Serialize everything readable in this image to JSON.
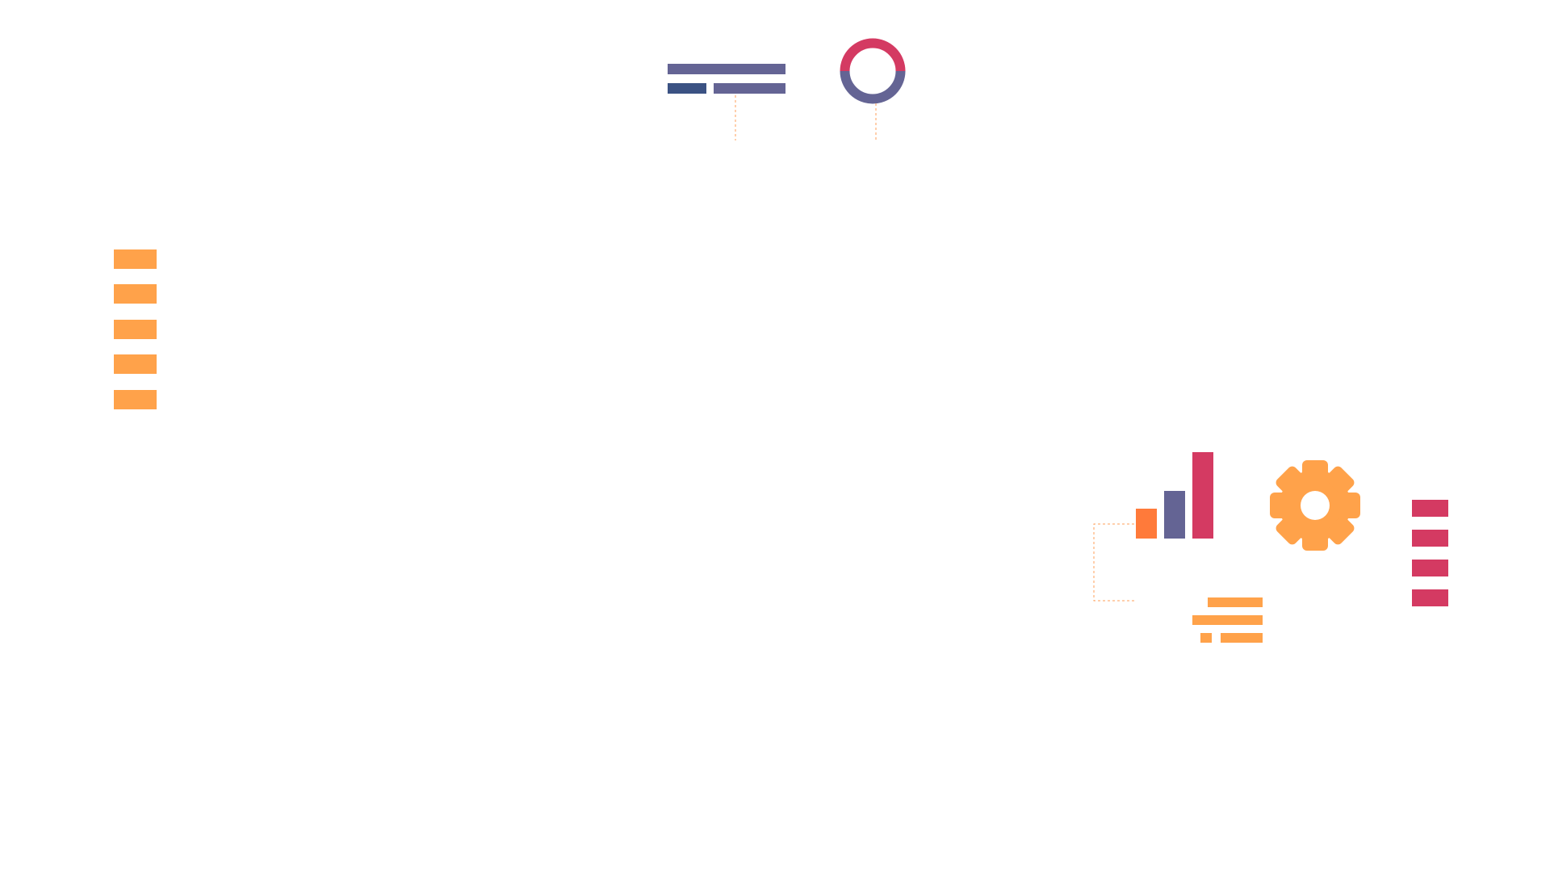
{
  "colors": {
    "background": "#ffffff",
    "orange_light": "#ffa24a",
    "orange_dark": "#ff7a3a",
    "purple": "#646494",
    "navy": "#3b5283",
    "crimson": "#d43a62",
    "connector": "#ff9f5a"
  },
  "icons": [
    "text-lines-icon",
    "ring-icon",
    "orange-stack-icon",
    "bar-chart-icon",
    "gear-icon",
    "crimson-stack-icon",
    "align-lines-icon"
  ],
  "bar_chart_levels": [
    0.35,
    0.55,
    1.0
  ]
}
